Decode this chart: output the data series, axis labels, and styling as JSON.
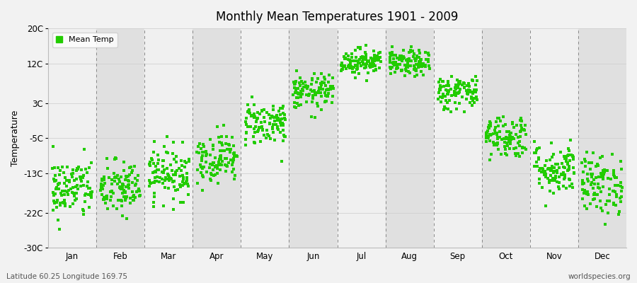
{
  "title": "Monthly Mean Temperatures 1901 - 2009",
  "ylabel": "Temperature",
  "footer_left": "Latitude 60.25 Longitude 169.75",
  "footer_right": "worldspecies.org",
  "legend_label": "Mean Temp",
  "dot_color": "#22cc00",
  "background_color": "#f2f2f2",
  "plot_bg_light": "#f0f0f0",
  "plot_bg_dark": "#e0e0e0",
  "dash_color": "#888888",
  "ylim": [
    -30,
    20
  ],
  "yticks": [
    20,
    12,
    3,
    -5,
    -13,
    -22,
    -30
  ],
  "ytick_labels": [
    "20C",
    "12C",
    "3C",
    "-5C",
    "-13C",
    "-22C",
    "-30C"
  ],
  "months": [
    "Jan",
    "Feb",
    "Mar",
    "Apr",
    "May",
    "Jun",
    "Jul",
    "Aug",
    "Sep",
    "Oct",
    "Nov",
    "Dec"
  ],
  "n_years": 109,
  "mean_temps": [
    -16.5,
    -16.5,
    -13.0,
    -9.5,
    -1.5,
    5.5,
    12.5,
    12.0,
    5.5,
    -4.5,
    -12.0,
    -15.5
  ],
  "std_temps": [
    3.5,
    3.2,
    3.0,
    2.8,
    2.5,
    2.0,
    1.5,
    1.5,
    2.0,
    2.5,
    3.0,
    3.5
  ],
  "seed": 42
}
